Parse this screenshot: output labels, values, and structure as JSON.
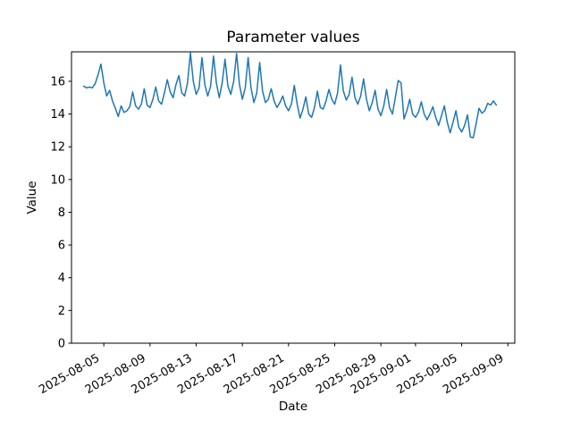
{
  "chart_data": {
    "type": "line",
    "title": "Parameter values",
    "xlabel": "Date",
    "ylabel": "Value",
    "grid": false,
    "legend": "none",
    "line_color": "#1f77b4",
    "line_width": 1.5,
    "background_color": "#ffffff",
    "x_axis": {
      "epoch": "2025-08-01",
      "unit": "days",
      "xlim": [
        1.2,
        39.6
      ],
      "tick_days": [
        4,
        8,
        12,
        16,
        20,
        24,
        28,
        31,
        35,
        39
      ],
      "tick_labels": [
        "2025-08-05",
        "2025-08-09",
        "2025-08-13",
        "2025-08-17",
        "2025-08-21",
        "2025-08-25",
        "2025-08-29",
        "2025-09-01",
        "2025-09-05",
        "2025-09-09"
      ],
      "tick_label_rotation_deg": 30
    },
    "y_axis": {
      "ylim": [
        0,
        17.8
      ],
      "ticks": [
        0,
        2,
        4,
        6,
        8,
        10,
        12,
        14,
        16
      ]
    },
    "series": [
      {
        "name": "parameter-values",
        "x_start_day": 2.25,
        "x_step_days": 0.25,
        "sample_interval": "6 hours, starting 2025-08-03 06:00, ending 2025-09-08 00:00",
        "values": [
          15.7,
          15.6,
          15.65,
          15.6,
          15.85,
          16.4,
          17.05,
          15.9,
          15.1,
          15.45,
          14.8,
          14.35,
          13.85,
          14.5,
          14.1,
          14.2,
          14.45,
          15.35,
          14.5,
          14.3,
          14.6,
          15.55,
          14.55,
          14.4,
          14.9,
          15.65,
          14.8,
          14.6,
          15.3,
          16.1,
          15.35,
          15.0,
          15.8,
          16.35,
          15.3,
          15.1,
          15.9,
          17.75,
          16.0,
          15.2,
          15.6,
          17.45,
          15.8,
          15.1,
          15.7,
          17.55,
          15.9,
          15.0,
          15.9,
          17.35,
          15.7,
          15.2,
          16.0,
          17.7,
          15.8,
          14.9,
          15.6,
          17.45,
          15.6,
          14.7,
          15.3,
          17.15,
          15.4,
          14.7,
          14.9,
          15.55,
          14.8,
          14.4,
          14.7,
          15.1,
          14.5,
          14.2,
          14.6,
          15.75,
          14.6,
          13.75,
          14.3,
          15.05,
          14.0,
          13.8,
          14.4,
          15.4,
          14.4,
          14.3,
          14.8,
          15.5,
          14.9,
          14.6,
          15.3,
          17.0,
          15.4,
          14.85,
          15.2,
          16.25,
          15.0,
          14.6,
          15.1,
          16.15,
          14.9,
          14.2,
          14.7,
          15.45,
          14.3,
          13.9,
          14.5,
          15.5,
          14.4,
          14.0,
          15.0,
          16.05,
          15.9,
          13.7,
          14.2,
          14.9,
          14.0,
          13.8,
          14.1,
          14.75,
          14.0,
          13.65,
          14.0,
          14.45,
          13.8,
          13.3,
          13.9,
          14.5,
          13.5,
          12.85,
          13.5,
          14.2,
          13.2,
          12.9,
          13.3,
          13.95,
          12.6,
          12.55,
          13.4,
          14.35,
          14.05,
          14.2,
          14.65,
          14.55,
          14.8,
          14.55
        ]
      }
    ]
  }
}
